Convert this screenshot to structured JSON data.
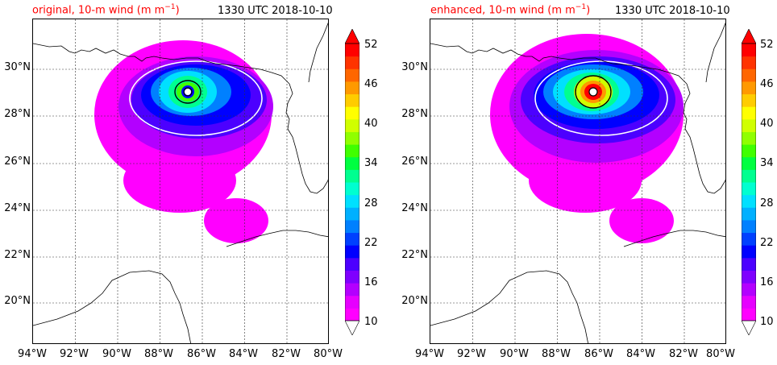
{
  "panels": [
    {
      "title": "original, 10-m wind (m m",
      "title_sup": "−1",
      "title_close": ")",
      "time": "1330 UTC 2018-10-10",
      "intensity": "original"
    },
    {
      "title": "enhanced, 10-m wind (m m",
      "title_sup": "−1",
      "title_close": ")",
      "time": "1330 UTC 2018-10-10",
      "intensity": "enhanced"
    }
  ],
  "lat_labels": [
    "30°N",
    "28°N",
    "26°N",
    "24°N",
    "22°N",
    "20°N"
  ],
  "lon_labels": [
    "94°W",
    "92°W",
    "90°W",
    "88°W",
    "86°W",
    "84°W",
    "82°W",
    "80°W"
  ],
  "colorbar": {
    "tick_labels": [
      "52",
      "46",
      "40",
      "34",
      "28",
      "22",
      "16",
      "10"
    ],
    "min": 10,
    "max": 52,
    "colors": [
      "#ff00ff",
      "#e600ff",
      "#b300ff",
      "#7f00ff",
      "#4c00ff",
      "#0000ff",
      "#0040ff",
      "#0080ff",
      "#00b0ff",
      "#00e0ff",
      "#00ffd0",
      "#00ff90",
      "#00ff40",
      "#40ff00",
      "#90ff00",
      "#d0ff00",
      "#ffff00",
      "#ffcc00",
      "#ff9900",
      "#ff6600",
      "#ff3300",
      "#ff0000"
    ]
  }
}
